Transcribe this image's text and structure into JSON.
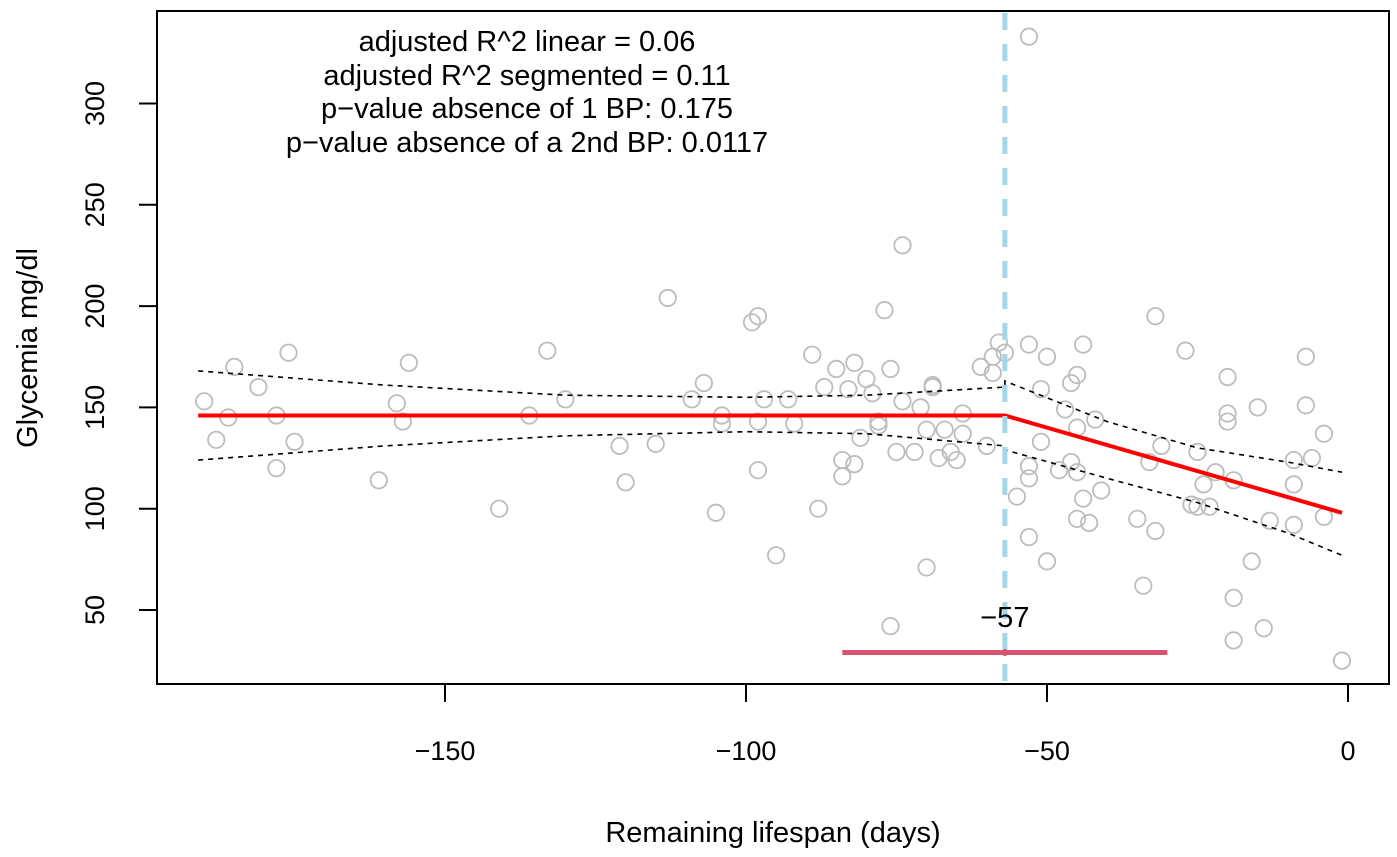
{
  "chart_data": {
    "type": "scatter",
    "xlabel": "Remaining lifespan (days)",
    "ylabel": "Glycemia mg/dl",
    "xlim": [
      -191,
      7
    ],
    "ylim": [
      17,
      342
    ],
    "x_ticks": [
      -150,
      -100,
      -50,
      0
    ],
    "y_ticks": [
      50,
      100,
      150,
      200,
      250,
      300
    ],
    "x_tick_labels": [
      "−150",
      "−100",
      "−50",
      "0"
    ],
    "y_tick_labels": [
      "50",
      "100",
      "150",
      "200",
      "250",
      "300"
    ],
    "grid": false,
    "annotations": [
      "adjusted R^2 linear = 0.06",
      "adjusted R^2 segmented = 0.11",
      "p−value absence of 1 BP: 0.175",
      "p−value absence of a 2nd BP: 0.0117"
    ],
    "breakpoint": {
      "x": -57,
      "label": "−57",
      "ci": [
        -84,
        -30
      ],
      "ci_y": 29,
      "line_color": "#a6d6e6",
      "ci_color": "#d6546e"
    },
    "fit": {
      "color": "#ff0000",
      "points": [
        [
          -191,
          146
        ],
        [
          -57,
          146
        ],
        [
          -1,
          98
        ]
      ]
    },
    "ci_upper": {
      "color": "#000000",
      "points": [
        [
          -191,
          168
        ],
        [
          -160,
          161
        ],
        [
          -130,
          156
        ],
        [
          -100,
          155
        ],
        [
          -80,
          156
        ],
        [
          -57,
          160
        ],
        [
          -57,
          163
        ],
        [
          -40,
          143
        ],
        [
          -25,
          130
        ],
        [
          -10,
          123
        ],
        [
          -1,
          118
        ]
      ]
    },
    "ci_lower": {
      "color": "#000000",
      "points": [
        [
          -191,
          124
        ],
        [
          -160,
          131
        ],
        [
          -130,
          136
        ],
        [
          -100,
          138
        ],
        [
          -80,
          137
        ],
        [
          -57,
          131
        ],
        [
          -57,
          129
        ],
        [
          -40,
          115
        ],
        [
          -25,
          103
        ],
        [
          -10,
          88
        ],
        [
          -1,
          77
        ]
      ]
    },
    "points": {
      "color": "#bdbdbd",
      "values": [
        [
          -190,
          153
        ],
        [
          -188,
          134
        ],
        [
          -186,
          145
        ],
        [
          -185,
          170
        ],
        [
          -181,
          160
        ],
        [
          -178,
          146
        ],
        [
          -178,
          120
        ],
        [
          -176,
          177
        ],
        [
          -175,
          133
        ],
        [
          -161,
          114
        ],
        [
          -158,
          152
        ],
        [
          -157,
          143
        ],
        [
          -156,
          172
        ],
        [
          -141,
          100
        ],
        [
          -136,
          146
        ],
        [
          -133,
          178
        ],
        [
          -130,
          154
        ],
        [
          -121,
          131
        ],
        [
          -120,
          113
        ],
        [
          -115,
          132
        ],
        [
          -113,
          204
        ],
        [
          -109,
          154
        ],
        [
          -107,
          162
        ],
        [
          -105,
          98
        ],
        [
          -104,
          146
        ],
        [
          -104,
          142
        ],
        [
          -99,
          192
        ],
        [
          -98,
          195
        ],
        [
          -98,
          143
        ],
        [
          -98,
          119
        ],
        [
          -97,
          154
        ],
        [
          -95,
          77
        ],
        [
          -93,
          154
        ],
        [
          -92,
          142
        ],
        [
          -89,
          176
        ],
        [
          -88,
          100
        ],
        [
          -87,
          160
        ],
        [
          -85,
          169
        ],
        [
          -84,
          124
        ],
        [
          -84,
          116
        ],
        [
          -83,
          159
        ],
        [
          -82,
          122
        ],
        [
          -82,
          172
        ],
        [
          -81,
          135
        ],
        [
          -80,
          164
        ],
        [
          -79,
          157
        ],
        [
          -78,
          143
        ],
        [
          -78,
          141
        ],
        [
          -77,
          198
        ],
        [
          -76,
          169
        ],
        [
          -76,
          42
        ],
        [
          -75,
          128
        ],
        [
          -74,
          153
        ],
        [
          -74,
          230
        ],
        [
          -72,
          128
        ],
        [
          -71,
          150
        ],
        [
          -70,
          139
        ],
        [
          -70,
          71
        ],
        [
          -69,
          161
        ],
        [
          -69,
          160
        ],
        [
          -68,
          125
        ],
        [
          -67,
          139
        ],
        [
          -66,
          128
        ],
        [
          -65,
          124
        ],
        [
          -64,
          137
        ],
        [
          -64,
          147
        ],
        [
          -61,
          170
        ],
        [
          -60,
          131
        ],
        [
          -59,
          167
        ],
        [
          -59,
          175
        ],
        [
          -58,
          182
        ],
        [
          -57,
          177
        ],
        [
          -55,
          106
        ],
        [
          -53,
          333
        ],
        [
          -53,
          181
        ],
        [
          -53,
          121
        ],
        [
          -53,
          115
        ],
        [
          -53,
          86
        ],
        [
          -51,
          159
        ],
        [
          -51,
          133
        ],
        [
          -50,
          175
        ],
        [
          -50,
          74
        ],
        [
          -48,
          119
        ],
        [
          -47,
          149
        ],
        [
          -46,
          162
        ],
        [
          -46,
          123
        ],
        [
          -45,
          166
        ],
        [
          -45,
          140
        ],
        [
          -45,
          118
        ],
        [
          -45,
          95
        ],
        [
          -44,
          181
        ],
        [
          -44,
          105
        ],
        [
          -43,
          93
        ],
        [
          -42,
          144
        ],
        [
          -41,
          109
        ],
        [
          -35,
          95
        ],
        [
          -34,
          62
        ],
        [
          -33,
          123
        ],
        [
          -32,
          195
        ],
        [
          -32,
          89
        ],
        [
          -31,
          131
        ],
        [
          -27,
          178
        ],
        [
          -26,
          102
        ],
        [
          -25,
          128
        ],
        [
          -25,
          101
        ],
        [
          -24,
          112
        ],
        [
          -23,
          101
        ],
        [
          -22,
          118
        ],
        [
          -20,
          165
        ],
        [
          -20,
          147
        ],
        [
          -20,
          143
        ],
        [
          -19,
          114
        ],
        [
          -19,
          56
        ],
        [
          -19,
          35
        ],
        [
          -16,
          74
        ],
        [
          -15,
          150
        ],
        [
          -14,
          41
        ],
        [
          -13,
          94
        ],
        [
          -9,
          124
        ],
        [
          -9,
          112
        ],
        [
          -9,
          92
        ],
        [
          -7,
          175
        ],
        [
          -7,
          151
        ],
        [
          -6,
          125
        ],
        [
          -4,
          137
        ],
        [
          -4,
          96
        ],
        [
          -1,
          25
        ]
      ]
    }
  }
}
